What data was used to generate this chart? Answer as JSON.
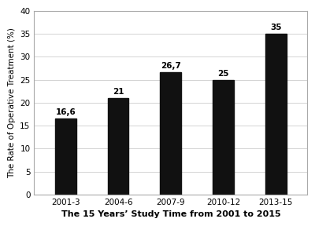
{
  "categories": [
    "2001-3",
    "2004-6",
    "2007-9",
    "2010-12",
    "2013-15"
  ],
  "values": [
    16.6,
    21,
    26.7,
    25,
    35
  ],
  "bar_labels": [
    "16,6",
    "21",
    "26,7",
    "25",
    "35"
  ],
  "bar_color": "#111111",
  "xlabel": "The 15 Years’ Study Time from 2001 to 2015",
  "ylabel": "The Rate of Operative Treatment (%)",
  "ylim": [
    0,
    40
  ],
  "yticks": [
    0,
    5,
    10,
    15,
    20,
    25,
    30,
    35,
    40
  ],
  "grid_color": "#cccccc",
  "background_color": "#ffffff",
  "plot_bg_color": "#ffffff",
  "xlabel_fontsize": 8.0,
  "ylabel_fontsize": 7.5,
  "tick_fontsize": 7.5,
  "label_fontsize": 7.5,
  "bar_width": 0.4
}
